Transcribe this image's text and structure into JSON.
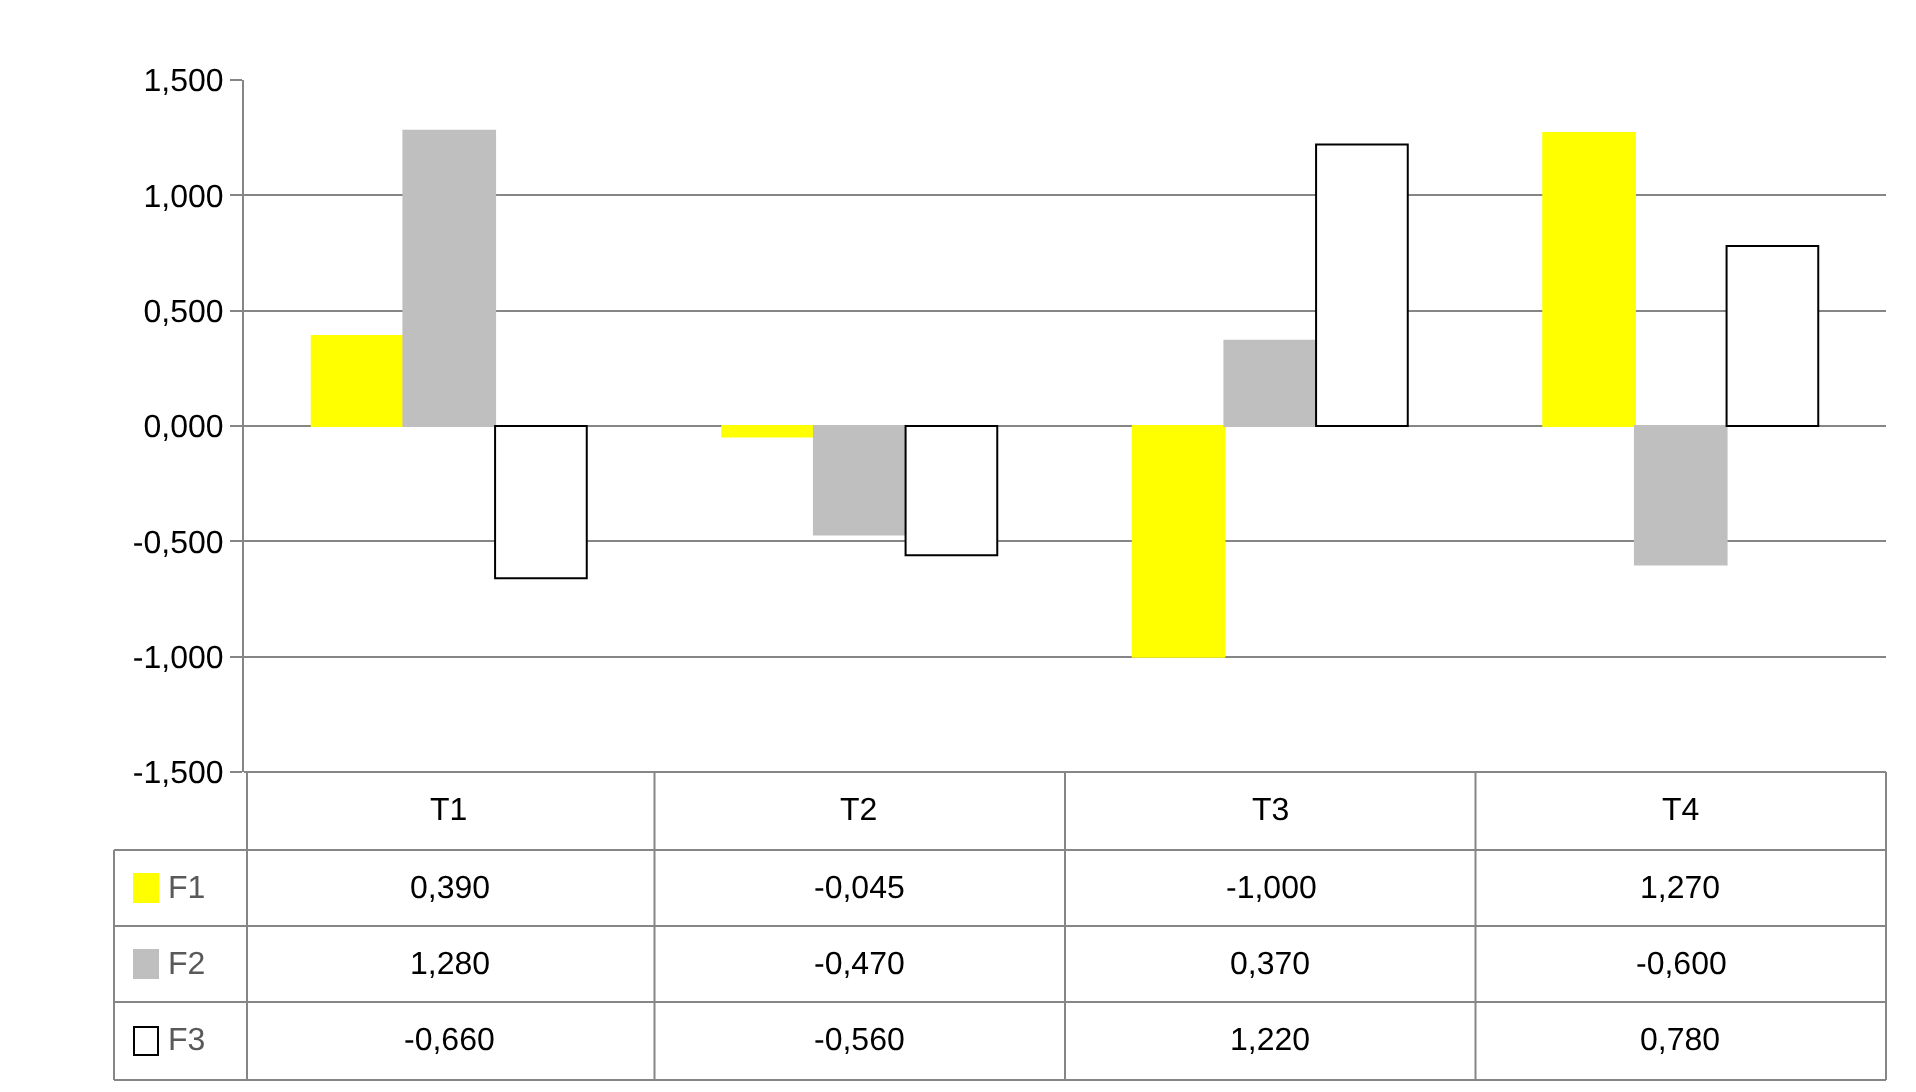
{
  "chart_data": {
    "type": "bar",
    "categories": [
      "T1",
      "T2",
      "T3",
      "T4"
    ],
    "series": [
      {
        "name": "F1",
        "color": "#ffff00",
        "values": [
          0.39,
          -0.045,
          -1.0,
          1.27
        ],
        "value_labels": [
          "0,390",
          "-0,045",
          "-1,000",
          "1,270"
        ]
      },
      {
        "name": "F2",
        "color": "#bfbfbf",
        "values": [
          1.28,
          -0.47,
          0.37,
          -0.6
        ],
        "value_labels": [
          "1,280",
          "-0,470",
          "0,370",
          "-0,600"
        ]
      },
      {
        "name": "F3",
        "color": "#ffffff",
        "values": [
          -0.66,
          -0.56,
          1.22,
          0.78
        ],
        "value_labels": [
          "-0,660",
          "-0,560",
          "1,220",
          "0,780"
        ]
      }
    ],
    "ylim": [
      -1.5,
      1.5
    ],
    "yticks": [
      {
        "value": -1.5,
        "label": "-1,500"
      },
      {
        "value": -1.0,
        "label": "-1,000"
      },
      {
        "value": -0.5,
        "label": "-0,500"
      },
      {
        "value": 0,
        "label": "0,000"
      },
      {
        "value": 0.5,
        "label": "0,500"
      },
      {
        "value": 1.0,
        "label": "1,000"
      },
      {
        "value": 1.5,
        "label": "1,500"
      }
    ],
    "grid": "y",
    "legend": "bottom left"
  }
}
